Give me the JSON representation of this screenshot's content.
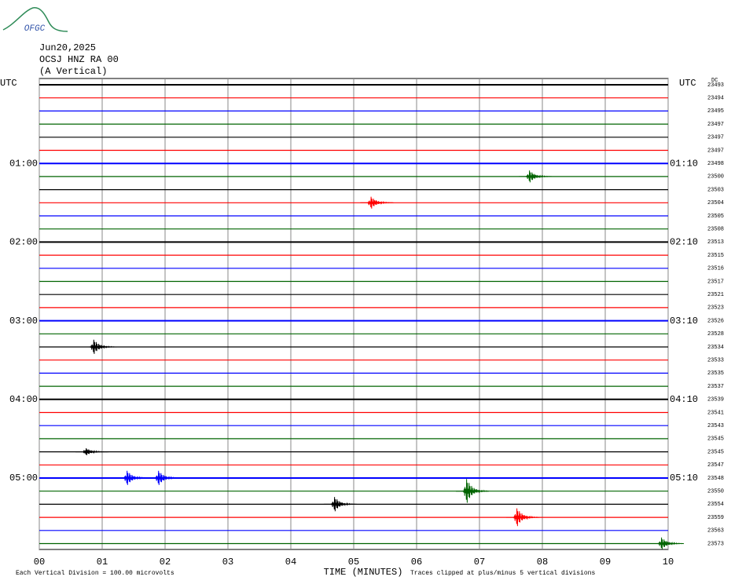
{
  "chart_data": {
    "type": "helicorder",
    "logo": "OFGC",
    "date": "Jun20,2025",
    "station": "OCSJ HNZ RA 00",
    "component": "(A Vertical)",
    "left_header": "UTC",
    "right_header": "UTC",
    "dc_header": "DC",
    "xlabel": "TIME (MINUTES)",
    "scale_note": "Each Vertical Division =  100.00 microvolts",
    "clip_note": "Traces clipped at plus/minus 5 vertical divisions",
    "xlim": [
      0,
      10
    ],
    "xticks": [
      {
        "value": 0,
        "label": "00"
      },
      {
        "value": 1,
        "label": "01"
      },
      {
        "value": 2,
        "label": "02"
      },
      {
        "value": 3,
        "label": "03"
      },
      {
        "value": 4,
        "label": "04"
      },
      {
        "value": 5,
        "label": "05"
      },
      {
        "value": 6,
        "label": "06"
      },
      {
        "value": 7,
        "label": "07"
      },
      {
        "value": 8,
        "label": "08"
      },
      {
        "value": 9,
        "label": "09"
      },
      {
        "value": 10,
        "label": "10"
      }
    ],
    "colors": [
      "#000000",
      "#ff0000",
      "#0000ff",
      "#006400"
    ],
    "left_labels": [
      null,
      null,
      null,
      null,
      null,
      null,
      "01:00",
      null,
      null,
      null,
      null,
      null,
      "02:00",
      null,
      null,
      null,
      null,
      null,
      "03:00",
      null,
      null,
      null,
      null,
      null,
      "04:00",
      null,
      null,
      null,
      null,
      null,
      "05:00",
      null,
      null,
      null,
      null,
      null
    ],
    "right_labels": [
      null,
      null,
      null,
      null,
      null,
      null,
      "01:10",
      null,
      null,
      null,
      null,
      null,
      "02:10",
      null,
      null,
      null,
      null,
      null,
      "03:10",
      null,
      null,
      null,
      null,
      null,
      "04:10",
      null,
      null,
      null,
      null,
      null,
      "05:10",
      null,
      null,
      null,
      null,
      null
    ],
    "dc_values": [
      23493,
      23494,
      23495,
      23497,
      23497,
      23497,
      23498,
      23500,
      23503,
      23504,
      23505,
      23508,
      23513,
      23515,
      23516,
      23517,
      23521,
      23523,
      23526,
      23528,
      23534,
      23533,
      23535,
      23537,
      23539,
      23541,
      23543,
      23545,
      23545,
      23547,
      23548,
      23550,
      23554,
      23559,
      23563,
      23573
    ],
    "events": [
      {
        "row": 7,
        "minute": 7.8,
        "amplitude": 1.0
      },
      {
        "row": 9,
        "minute": 5.28,
        "amplitude": 1.0
      },
      {
        "row": 20,
        "minute": 0.87,
        "amplitude": 1.2
      },
      {
        "row": 28,
        "minute": 0.75,
        "amplitude": 0.6
      },
      {
        "row": 30,
        "minute": 1.4,
        "amplitude": 1.2
      },
      {
        "row": 30,
        "minute": 1.9,
        "amplitude": 1.2
      },
      {
        "row": 31,
        "minute": 6.8,
        "amplitude": 2.0
      },
      {
        "row": 32,
        "minute": 4.7,
        "amplitude": 1.2
      },
      {
        "row": 33,
        "minute": 7.6,
        "amplitude": 1.5
      },
      {
        "row": 35,
        "minute": 9.9,
        "amplitude": 1.0
      }
    ]
  }
}
